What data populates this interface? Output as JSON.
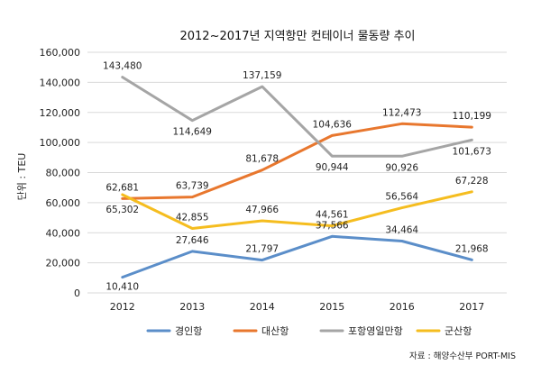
{
  "chart_data": {
    "type": "line",
    "title": "2012~2017년 지역항만 컨테이너 물동량 추이",
    "ylabel": "단위 : TEU",
    "xlabel": "",
    "categories": [
      "2012",
      "2013",
      "2014",
      "2015",
      "2016",
      "2017"
    ],
    "ylim": [
      0,
      160000
    ],
    "yticks": [
      0,
      20000,
      40000,
      60000,
      80000,
      100000,
      120000,
      140000,
      160000
    ],
    "ytick_labels": [
      "0",
      "20,000",
      "40,000",
      "60,000",
      "80,000",
      "100,000",
      "120,000",
      "140,000",
      "160,000"
    ],
    "grid": true,
    "legend_position": "bottom",
    "series": [
      {
        "name": "경인항",
        "color": "#5b8ec9",
        "values": [
          10410,
          27646,
          21797,
          37566,
          34464,
          21968
        ],
        "labels": [
          "10,410",
          "27,646",
          "21,797",
          "37,566",
          "34,464",
          "21,968"
        ]
      },
      {
        "name": "대산항",
        "color": "#e8772e",
        "values": [
          62681,
          63739,
          81678,
          104636,
          112473,
          110199
        ],
        "labels": [
          "62,681",
          "63,739",
          "81,678",
          "104,636",
          "112,473",
          "110,199"
        ]
      },
      {
        "name": "포항영일만항",
        "color": "#a5a5a5",
        "values": [
          143480,
          114649,
          137159,
          90944,
          90926,
          101673
        ],
        "labels": [
          "143,480",
          "114,649",
          "137,159",
          "90,944",
          "90,926",
          "101,673"
        ]
      },
      {
        "name": "군산항",
        "color": "#f5bd1f",
        "values": [
          65302,
          42855,
          47966,
          44561,
          56564,
          67228
        ],
        "labels": [
          "65,302",
          "42,855",
          "47,966",
          "44,561",
          "56,564",
          "67,228"
        ]
      }
    ],
    "source": "자료 : 해양수산부 PORT-MIS"
  }
}
